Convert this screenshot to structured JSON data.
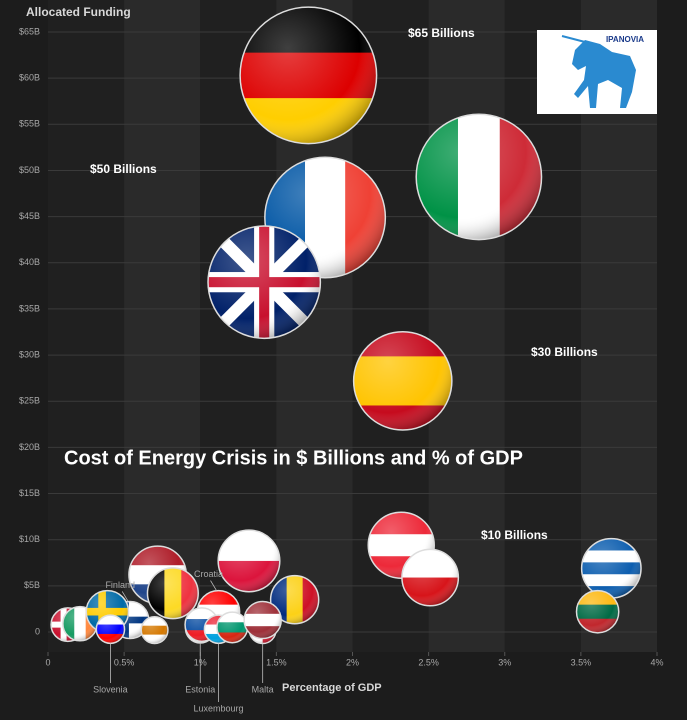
{
  "chart_data": {
    "type": "bubble",
    "title": "Cost of Energy Crisis in  $ Billions and % of GDP",
    "y_label": "Allocated Funding",
    "x_label": "Percentage of GDP",
    "annotations": [
      "$65 Billions",
      "$50 Billions",
      "$30 Billions",
      "$10 Billions"
    ],
    "logo": "IPANOVIA",
    "xlim": [
      0,
      4
    ],
    "ylim": [
      0,
      65
    ],
    "xticks": [
      0,
      {
        "value": 0.5,
        "label": "0.5%"
      },
      {
        "value": 1,
        "label": "1%"
      },
      {
        "value": 1.5,
        "label": "1.5%"
      },
      {
        "value": 2,
        "label": "2%"
      },
      {
        "value": 2.5,
        "label": "2.5%"
      },
      {
        "value": 3,
        "label": "3%"
      },
      {
        "value": 3.5,
        "label": "3.5%"
      },
      {
        "value": 4,
        "label": "4%"
      }
    ],
    "yticks": [
      0,
      {
        "value": 5,
        "label": "$5B"
      },
      {
        "value": 10,
        "label": "$10B"
      },
      {
        "value": 15,
        "label": "$15B"
      },
      {
        "value": 20,
        "label": "$20B"
      },
      {
        "value": 25,
        "label": "$25B"
      },
      {
        "value": 30,
        "label": "$30B"
      },
      {
        "value": 35,
        "label": "$35B"
      },
      {
        "value": 40,
        "label": "$40B"
      },
      {
        "value": 45,
        "label": "$45B"
      },
      {
        "value": 50,
        "label": "$50B"
      },
      {
        "value": 55,
        "label": "$55B"
      },
      {
        "value": 60,
        "label": "$60B"
      },
      {
        "value": 65,
        "label": "$65B"
      }
    ],
    "points": [
      {
        "x": 1.71,
        "y": 60.3,
        "colors": [
          "#000000",
          "#dd0000",
          "#ffce00"
        ],
        "stripes": "horizontal"
      },
      {
        "x": 2.83,
        "y": 49.3,
        "colors": [
          "#009246",
          "#ffffff",
          "#ce2b37"
        ],
        "stripes": "vertical"
      },
      {
        "x": 1.82,
        "y": 44.9,
        "colors": [
          "#0055a4",
          "#ffffff",
          "#ef4135"
        ],
        "stripes": "vertical"
      },
      {
        "x": 1.42,
        "y": 37.9,
        "colors": [
          "#012169",
          "#ffffff",
          "#c8102e"
        ],
        "stripes": "cross"
      },
      {
        "x": 2.33,
        "y": 27.2,
        "colors": [
          "#c60b1e",
          "#ffc400",
          "#ffc400",
          "#c60b1e"
        ],
        "stripes": "horizontal"
      },
      {
        "x": 2.32,
        "y": 9.4,
        "colors": [
          "#ed2939",
          "#ffffff",
          "#ed2939"
        ],
        "stripes": "horizontal"
      },
      {
        "x": 2.51,
        "y": 5.9,
        "colors": [
          "#ffffff",
          "#d7141a"
        ],
        "stripes": "horizontal"
      },
      {
        "x": 3.7,
        "y": 6.9,
        "colors": [
          "#0d5eaf",
          "#ffffff",
          "#0d5eaf",
          "#ffffff",
          "#0d5eaf"
        ],
        "stripes": "horizontal"
      },
      {
        "x": 3.61,
        "y": 2.2,
        "colors": [
          "#fdb913",
          "#006a44",
          "#c1272d"
        ],
        "stripes": "horizontal"
      },
      {
        "x": 1.32,
        "y": 7.7,
        "colors": [
          "#ffffff",
          "#dc143c"
        ],
        "stripes": "horizontal"
      },
      {
        "x": 0.72,
        "y": 6.2,
        "colors": [
          "#ae1c28",
          "#ffffff",
          "#21468b"
        ],
        "stripes": "horizontal"
      },
      {
        "x": 0.82,
        "y": 4.2,
        "colors": [
          "#000000",
          "#fdda24",
          "#ef3340"
        ],
        "stripes": "vertical"
      },
      {
        "x": 1.62,
        "y": 3.5,
        "colors": [
          "#002b7f",
          "#fcd116",
          "#ce1126"
        ],
        "stripes": "vertical"
      },
      {
        "x": 0.13,
        "y": 0.8,
        "colors": [
          "#c8102e",
          "#ffffff"
        ],
        "stripes": "cross"
      },
      {
        "x": 0.21,
        "y": 0.9,
        "colors": [
          "#169b62",
          "#ffffff",
          "#ff883e"
        ],
        "stripes": "vertical"
      },
      {
        "x": 0.54,
        "y": 1.3,
        "colors": [
          "#ffffff",
          "#003580"
        ],
        "stripes": "cross",
        "label": "Finland"
      },
      {
        "x": 0.39,
        "y": 2.2,
        "colors": [
          "#006aa7",
          "#fecc00"
        ],
        "stripes": "cross"
      },
      {
        "x": 0.41,
        "y": 0.3,
        "colors": [
          "#ffffff",
          "#0000ff",
          "#ff0000"
        ],
        "stripes": "horizontal",
        "label": "Slovenia"
      },
      {
        "x": 0.7,
        "y": 0.2,
        "colors": [
          "#ffffff",
          "#d57800",
          "#ffffff"
        ],
        "stripes": "horizontal"
      },
      {
        "x": 1.12,
        "y": 2.2,
        "colors": [
          "#ff0000",
          "#ffffff",
          "#171796"
        ],
        "stripes": "horizontal",
        "label": "Croatia"
      },
      {
        "x": 1.0,
        "y": 0.4,
        "colors": [
          "#0072ce",
          "#000000",
          "#ffffff"
        ],
        "stripes": "horizontal",
        "label": "Estonia"
      },
      {
        "x": 1.01,
        "y": 0.8,
        "colors": [
          "#ffffff",
          "#0b4ea2",
          "#ee1c25"
        ],
        "stripes": "horizontal"
      },
      {
        "x": 1.12,
        "y": 0.3,
        "colors": [
          "#ed2939",
          "#ffffff",
          "#00a1de"
        ],
        "stripes": "horizontal",
        "label": "Luxembourg"
      },
      {
        "x": 1.21,
        "y": 0.5,
        "colors": [
          "#ffffff",
          "#00966e",
          "#d62612"
        ],
        "stripes": "horizontal"
      },
      {
        "x": 1.41,
        "y": 0.2,
        "colors": [
          "#ffffff",
          "#cf142b"
        ],
        "stripes": "vertical",
        "label": "Malta"
      },
      {
        "x": 1.41,
        "y": 1.3,
        "colors": [
          "#9e3039",
          "#ffffff",
          "#9e3039"
        ],
        "stripes": "horizontal"
      }
    ]
  }
}
